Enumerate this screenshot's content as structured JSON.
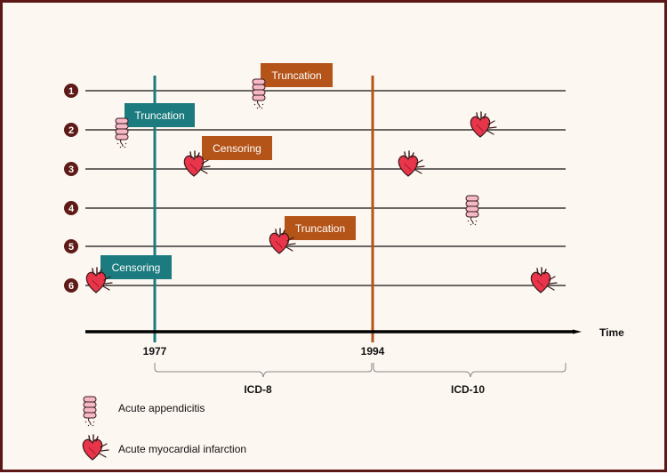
{
  "rows": [
    {
      "number": "1"
    },
    {
      "number": "2"
    },
    {
      "number": "3"
    },
    {
      "number": "4"
    },
    {
      "number": "5"
    },
    {
      "number": "6"
    }
  ],
  "markers": {
    "year_1977": "1977",
    "year_1994": "1994"
  },
  "axis": {
    "label": "Time"
  },
  "periods": {
    "icd8": "ICD-8",
    "icd10": "ICD-10"
  },
  "event_labels": {
    "row1": "Truncation",
    "row2": "Truncation",
    "row3": "Censoring",
    "row5": "Truncation",
    "row6": "Censoring"
  },
  "legend": {
    "appendicitis": "Acute appendicitis",
    "myocardial": "Acute myocardial infarction"
  },
  "colors": {
    "teal": "#1b7b7e",
    "orange": "#b45418",
    "heart": "#e8354a",
    "intestine": "#f4b8c7",
    "border": "#5c1716",
    "row_badge": "#5e1a17"
  }
}
